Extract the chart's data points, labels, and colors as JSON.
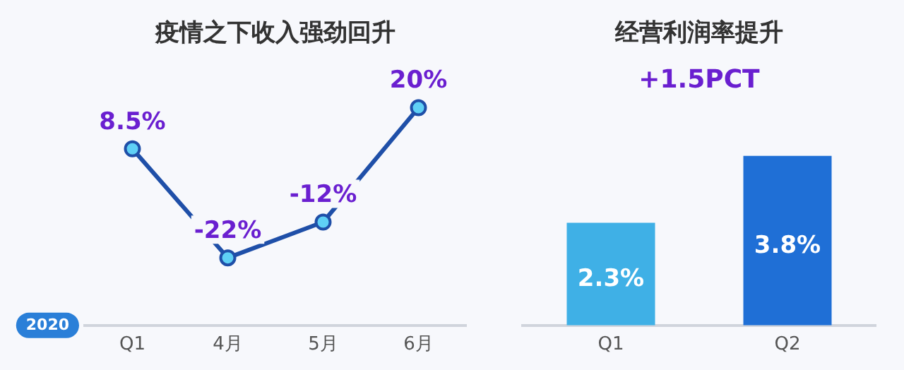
{
  "chart_data": [
    {
      "type": "line",
      "title": "疫情之下收入强劲回升",
      "categories": [
        "Q1",
        "4月",
        "5月",
        "6月"
      ],
      "values": [
        8.5,
        -22,
        -12,
        20
      ],
      "color": "#1f4fa8",
      "value_labels": [
        "8.5%",
        "-22%",
        "-12%",
        "20%"
      ],
      "marker": "circle",
      "grid": false,
      "legend": false,
      "annotations": [
        "2020"
      ]
    },
    {
      "type": "bar",
      "title": "经营利润率提升",
      "categories": [
        "Q1",
        "Q2"
      ],
      "values": [
        2.3,
        3.8
      ],
      "colors": [
        "#3fb0e6",
        "#1f6fd6"
      ],
      "value_labels": [
        "2.3%",
        "3.8%"
      ],
      "grid": false,
      "legend": false,
      "annotations": [
        "+1.5PCT"
      ]
    }
  ]
}
